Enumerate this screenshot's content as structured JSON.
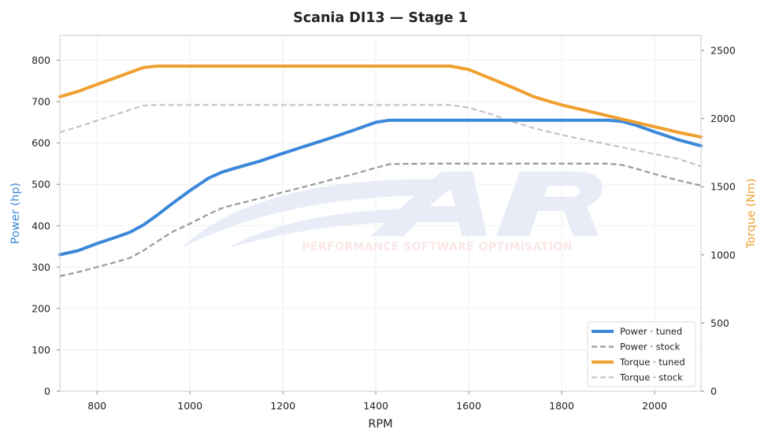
{
  "chart_data": {
    "type": "line",
    "title": "Scania DI13 — Stage 1",
    "xlabel": "RPM",
    "ylabel_left": "Power (hp)",
    "ylabel_right": "Torque (Nm)",
    "xlim": [
      720,
      2100
    ],
    "ylim_left": [
      0,
      860
    ],
    "ylim_right": [
      0,
      2610
    ],
    "x_ticks": [
      800,
      1000,
      1200,
      1400,
      1600,
      1800,
      2000
    ],
    "y_left_ticks": [
      0,
      100,
      200,
      300,
      400,
      500,
      600,
      700,
      800
    ],
    "y_right_ticks": [
      0,
      500,
      1000,
      1500,
      2000,
      2500
    ],
    "grid": true,
    "legend_position": "lower-right",
    "colors": {
      "power": "#3b87d9",
      "torque": "#f0a030",
      "power_stock": "#999999",
      "torque_stock": "#c4c4c4",
      "axis": "#cccccc",
      "watermark": "#e8ecf7"
    },
    "series": [
      {
        "name": "Power · tuned",
        "axis": "left",
        "style": "solid",
        "points": [
          [
            720,
            330
          ],
          [
            760,
            340
          ],
          [
            800,
            357
          ],
          [
            840,
            372
          ],
          [
            870,
            384
          ],
          [
            900,
            402
          ],
          [
            930,
            426
          ],
          [
            960,
            452
          ],
          [
            1000,
            485
          ],
          [
            1040,
            515
          ],
          [
            1070,
            530
          ],
          [
            1100,
            540
          ],
          [
            1150,
            556
          ],
          [
            1200,
            575
          ],
          [
            1250,
            593
          ],
          [
            1300,
            611
          ],
          [
            1350,
            630
          ],
          [
            1400,
            650
          ],
          [
            1430,
            655
          ],
          [
            1500,
            655
          ],
          [
            1600,
            655
          ],
          [
            1700,
            655
          ],
          [
            1800,
            655
          ],
          [
            1900,
            655
          ],
          [
            1930,
            652
          ],
          [
            1960,
            643
          ],
          [
            2000,
            627
          ],
          [
            2050,
            608
          ],
          [
            2100,
            593
          ]
        ]
      },
      {
        "name": "Power · stock",
        "axis": "left",
        "style": "dashed",
        "points": [
          [
            720,
            278
          ],
          [
            760,
            288
          ],
          [
            800,
            300
          ],
          [
            840,
            312
          ],
          [
            870,
            322
          ],
          [
            900,
            340
          ],
          [
            930,
            362
          ],
          [
            960,
            384
          ],
          [
            1000,
            405
          ],
          [
            1040,
            428
          ],
          [
            1070,
            443
          ],
          [
            1100,
            452
          ],
          [
            1150,
            466
          ],
          [
            1200,
            481
          ],
          [
            1250,
            495
          ],
          [
            1300,
            510
          ],
          [
            1350,
            524
          ],
          [
            1400,
            540
          ],
          [
            1430,
            549
          ],
          [
            1500,
            550
          ],
          [
            1600,
            550
          ],
          [
            1700,
            550
          ],
          [
            1800,
            550
          ],
          [
            1900,
            550
          ],
          [
            1930,
            547
          ],
          [
            1960,
            538
          ],
          [
            2000,
            525
          ],
          [
            2050,
            510
          ],
          [
            2100,
            497
          ]
        ]
      },
      {
        "name": "Torque · tuned",
        "axis": "right",
        "style": "solid",
        "points": [
          [
            720,
            2160
          ],
          [
            760,
            2200
          ],
          [
            800,
            2250
          ],
          [
            840,
            2300
          ],
          [
            880,
            2350
          ],
          [
            900,
            2375
          ],
          [
            930,
            2385
          ],
          [
            1000,
            2385
          ],
          [
            1100,
            2385
          ],
          [
            1200,
            2385
          ],
          [
            1300,
            2385
          ],
          [
            1400,
            2385
          ],
          [
            1500,
            2385
          ],
          [
            1560,
            2385
          ],
          [
            1600,
            2360
          ],
          [
            1650,
            2290
          ],
          [
            1700,
            2220
          ],
          [
            1740,
            2160
          ],
          [
            1780,
            2120
          ],
          [
            1800,
            2100
          ],
          [
            1850,
            2060
          ],
          [
            1900,
            2020
          ],
          [
            1950,
            1980
          ],
          [
            2000,
            1940
          ],
          [
            2050,
            1900
          ],
          [
            2100,
            1865
          ]
        ]
      },
      {
        "name": "Torque · stock",
        "axis": "right",
        "style": "dashed",
        "points": [
          [
            720,
            1900
          ],
          [
            760,
            1940
          ],
          [
            800,
            1985
          ],
          [
            840,
            2030
          ],
          [
            880,
            2075
          ],
          [
            900,
            2095
          ],
          [
            930,
            2100
          ],
          [
            1000,
            2100
          ],
          [
            1100,
            2100
          ],
          [
            1200,
            2100
          ],
          [
            1300,
            2100
          ],
          [
            1400,
            2100
          ],
          [
            1500,
            2100
          ],
          [
            1560,
            2100
          ],
          [
            1600,
            2080
          ],
          [
            1650,
            2030
          ],
          [
            1700,
            1970
          ],
          [
            1740,
            1930
          ],
          [
            1800,
            1880
          ],
          [
            1850,
            1845
          ],
          [
            1900,
            1810
          ],
          [
            1950,
            1775
          ],
          [
            2000,
            1740
          ],
          [
            2050,
            1705
          ],
          [
            2100,
            1650
          ]
        ]
      }
    ]
  },
  "watermark": {
    "text": "PERFORMANCE SOFTWARE OPTIMISATION"
  }
}
